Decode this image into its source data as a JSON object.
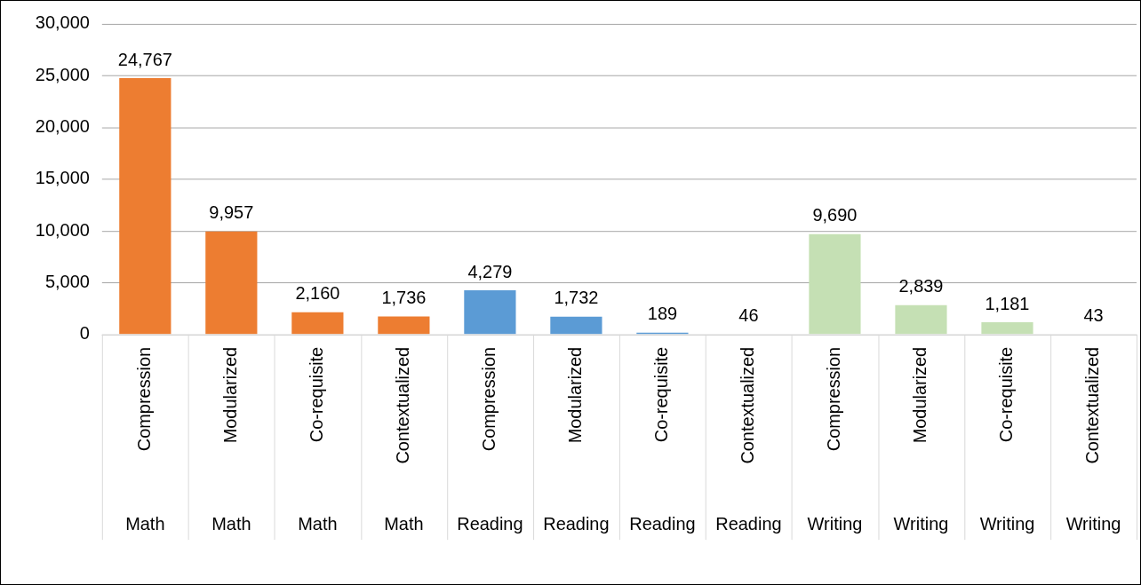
{
  "chart_data": {
    "type": "bar",
    "categories": [
      "Compression\nMath",
      "Modularized\nMath",
      "Co-requisite\nMath",
      "Contextualized\nMath",
      "Compression\nReading",
      "Modularized\nReading",
      "Co-requisite\nReading",
      "Contextualized\nReading",
      "Compression\nWriting",
      "Modularized\nWriting",
      "Co-requisite\nWriting",
      "Contextualized\nWriting"
    ],
    "values": [
      24767,
      9957,
      2160,
      1736,
      4279,
      1732,
      189,
      46,
      9690,
      2839,
      1181,
      43
    ],
    "value_labels": [
      "24,767",
      "9,957",
      "2,160",
      "1,736",
      "4,279",
      "1,732",
      "189",
      "46",
      "9,690",
      "2,839",
      "1,181",
      "43"
    ],
    "colors": [
      "#ed7d31",
      "#ed7d31",
      "#ed7d31",
      "#ed7d31",
      "#5b9bd5",
      "#5b9bd5",
      "#5b9bd5",
      "#5b9bd5",
      "#c5e0b4",
      "#c5e0b4",
      "#c5e0b4",
      "#c5e0b4"
    ],
    "ylim": [
      0,
      30000
    ],
    "yticks": [
      0,
      {
        "value": 5000,
        "label": "5,000"
      },
      {
        "value": 10000,
        "label": "10,000"
      },
      {
        "value": 15000,
        "label": "15,000"
      },
      {
        "value": 20000,
        "label": "20,000"
      },
      {
        "value": 25000,
        "label": "25,000"
      },
      {
        "value": 30000,
        "label": "30,000"
      }
    ],
    "grid": "y"
  }
}
